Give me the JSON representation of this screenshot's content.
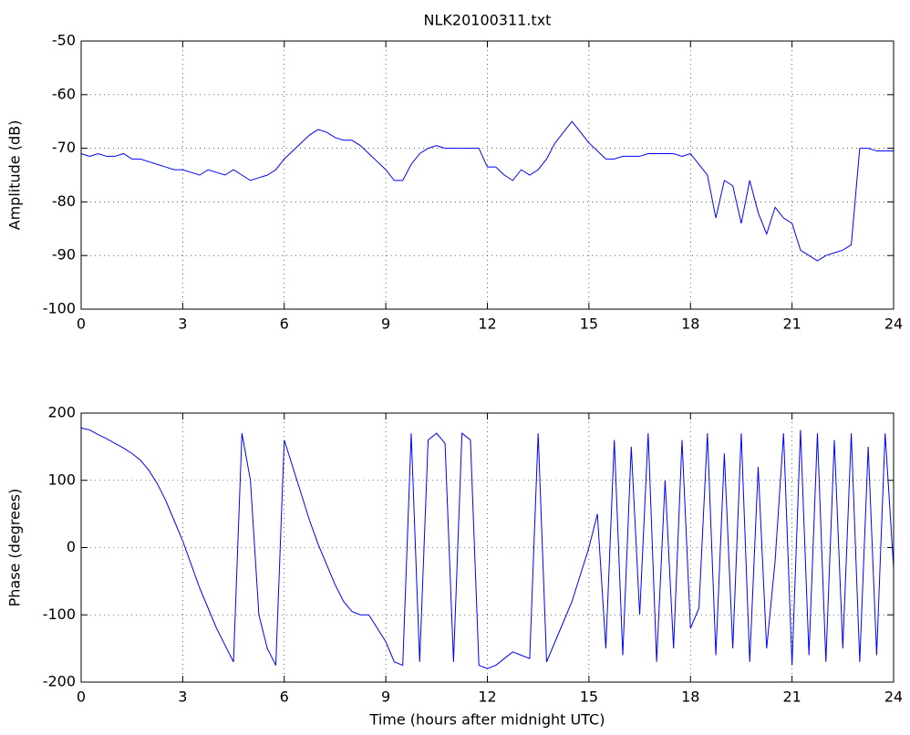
{
  "chart_data": [
    {
      "type": "line",
      "title": "NLK20100311.txt",
      "ylabel": "Amplitude (dB)",
      "color": "#0000ff",
      "grid": true,
      "xlim": [
        0,
        24
      ],
      "xticks": [
        0,
        3,
        6,
        9,
        12,
        15,
        18,
        21,
        24
      ],
      "ylim": [
        -100,
        -50
      ],
      "yticks": [
        -100,
        -90,
        -80,
        -70,
        -60,
        -50
      ],
      "x": [
        0,
        0.25,
        0.5,
        0.75,
        1,
        1.25,
        1.5,
        1.75,
        2,
        2.25,
        2.5,
        2.75,
        3,
        3.25,
        3.5,
        3.75,
        4,
        4.25,
        4.5,
        4.75,
        5,
        5.25,
        5.5,
        5.75,
        6,
        6.25,
        6.5,
        6.75,
        7,
        7.25,
        7.5,
        7.75,
        8,
        8.25,
        8.5,
        8.75,
        9,
        9.25,
        9.5,
        9.75,
        10,
        10.25,
        10.5,
        10.75,
        11,
        11.25,
        11.5,
        11.75,
        12,
        12.25,
        12.5,
        12.75,
        13,
        13.25,
        13.5,
        13.75,
        14,
        14.25,
        14.5,
        14.75,
        15,
        15.25,
        15.5,
        15.75,
        16,
        16.25,
        16.5,
        16.75,
        17,
        17.25,
        17.5,
        17.75,
        18,
        18.25,
        18.5,
        18.75,
        19,
        19.25,
        19.5,
        19.75,
        20,
        20.25,
        20.5,
        20.75,
        21,
        21.25,
        21.5,
        21.75,
        22,
        22.25,
        22.5,
        22.75,
        23,
        23.25,
        23.5,
        23.75,
        24
      ],
      "values": [
        -71,
        -71.5,
        -71,
        -71.5,
        -71.5,
        -71,
        -72,
        -72,
        -72.5,
        -73,
        -73.5,
        -74,
        -74,
        -74.5,
        -75,
        -74,
        -74.5,
        -75,
        -74,
        -75,
        -76,
        -75.5,
        -75,
        -74,
        -72,
        -70.5,
        -69,
        -67.5,
        -66.5,
        -67,
        -68,
        -68.5,
        -68.5,
        -69.5,
        -71,
        -72.5,
        -74,
        -76,
        -76,
        -73,
        -71,
        -70,
        -69.5,
        -70,
        -70,
        -70,
        -70,
        -70,
        -73.5,
        -73.5,
        -75,
        -76,
        -74,
        -75,
        -74,
        -72,
        -69,
        -67,
        -65,
        -67,
        -69,
        -70.5,
        -72,
        -72,
        -71.5,
        -71.5,
        -71.5,
        -71,
        -71,
        -71,
        -71,
        -71.5,
        -71,
        -73,
        -75,
        -83,
        -76,
        -77,
        -84,
        -76,
        -82,
        -86,
        -81,
        -83,
        -84,
        -89,
        -90,
        -91,
        -90,
        -89.5,
        -89,
        -88,
        -70,
        -70,
        -70.5,
        -70.5,
        -70.5
      ]
    },
    {
      "type": "line",
      "xlabel": "Time (hours after midnight UTC)",
      "ylabel": "Phase (degrees)",
      "color": "#0000ff",
      "grid": true,
      "xlim": [
        0,
        24
      ],
      "xticks": [
        0,
        3,
        6,
        9,
        12,
        15,
        18,
        21,
        24
      ],
      "ylim": [
        -200,
        200
      ],
      "yticks": [
        -200,
        -100,
        0,
        100,
        200
      ],
      "x": [
        0,
        0.25,
        0.5,
        0.75,
        1,
        1.25,
        1.5,
        1.75,
        2,
        2.25,
        2.5,
        2.75,
        3,
        3.25,
        3.5,
        3.75,
        4,
        4.25,
        4.5,
        4.75,
        5,
        5.25,
        5.5,
        5.75,
        6,
        6.25,
        6.5,
        6.75,
        7,
        7.25,
        7.5,
        7.75,
        8,
        8.25,
        8.5,
        8.75,
        9,
        9.25,
        9.5,
        9.75,
        10,
        10.25,
        10.5,
        10.75,
        11,
        11.25,
        11.5,
        11.75,
        12,
        12.25,
        12.5,
        12.75,
        13,
        13.25,
        13.5,
        13.75,
        14,
        14.25,
        14.5,
        14.75,
        15,
        15.25,
        15.5,
        15.75,
        16,
        16.25,
        16.5,
        16.75,
        17,
        17.25,
        17.5,
        17.75,
        18,
        18.25,
        18.5,
        18.75,
        19,
        19.25,
        19.5,
        19.75,
        20,
        20.25,
        20.5,
        20.75,
        21,
        21.25,
        21.5,
        21.75,
        22,
        22.25,
        22.5,
        22.75,
        23,
        23.25,
        23.5,
        23.75,
        24
      ],
      "values": [
        178,
        175,
        168,
        162,
        155,
        148,
        140,
        130,
        115,
        95,
        70,
        40,
        10,
        -25,
        -60,
        -90,
        -120,
        -145,
        -170,
        170,
        100,
        -100,
        -150,
        -175,
        160,
        120,
        80,
        40,
        5,
        -25,
        -55,
        -80,
        -95,
        -100,
        -100,
        -120,
        -140,
        -170,
        -175,
        170,
        -170,
        160,
        170,
        155,
        -170,
        170,
        160,
        -175,
        -180,
        -175,
        -165,
        -155,
        -160,
        -165,
        170,
        -170,
        -140,
        -110,
        -80,
        -40,
        0,
        50,
        -150,
        160,
        -160,
        150,
        -100,
        170,
        -170,
        100,
        -150,
        160,
        -120,
        -90,
        170,
        -160,
        140,
        -150,
        170,
        -170,
        120,
        -150,
        -20,
        170,
        -175,
        175,
        -160,
        170,
        -170,
        160,
        -150,
        170,
        -170,
        150,
        -160,
        170,
        -30
      ]
    }
  ]
}
